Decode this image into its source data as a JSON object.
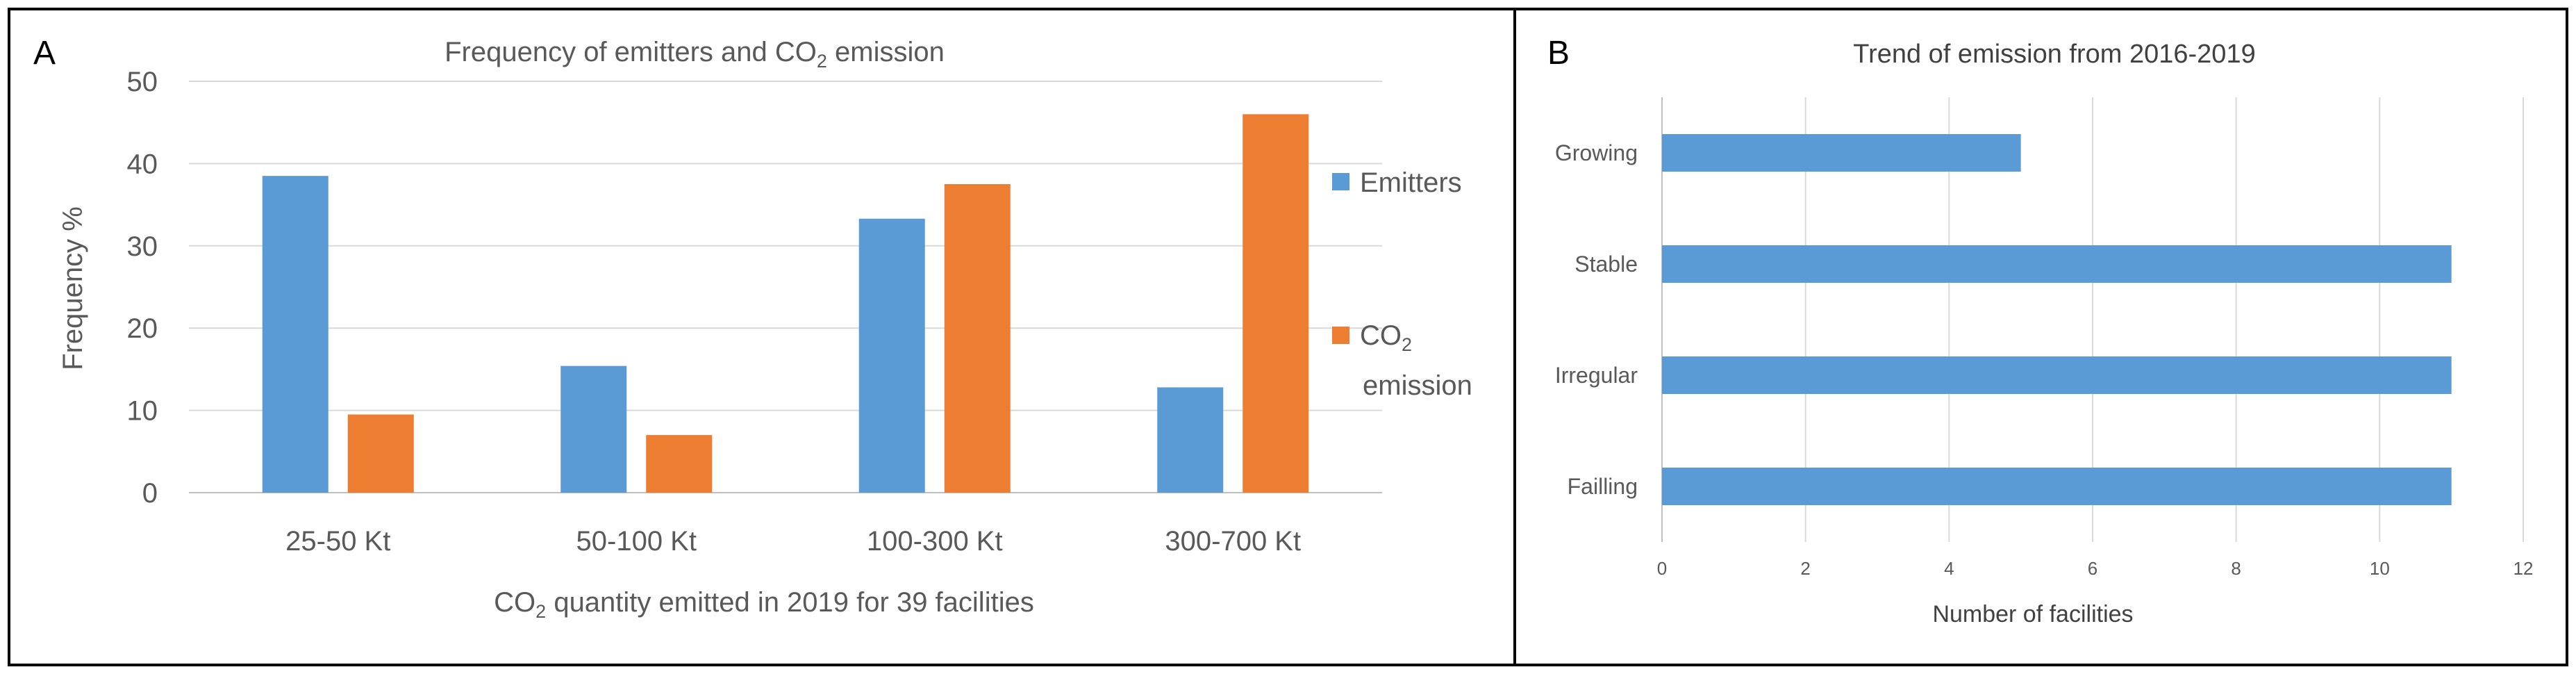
{
  "colors": {
    "emitters": "#5B9BD5",
    "co2": "#ED7D31",
    "axis_text": "#595959",
    "grid": "#D9D9D9",
    "border": "#000000"
  },
  "panel_a": {
    "letter": "A",
    "title_main": "Frequency of emitters and CO",
    "title_sub": "2",
    "title_end": " emission",
    "xlabel_main": "CO",
    "xlabel_sub": "2",
    "xlabel_end": "  quantity emitted in 2019 for 39 facilities",
    "ylabel": "Frequency %",
    "legend": {
      "emitters": "Emitters",
      "co2_main": "CO",
      "co2_sub": "2",
      "co2_line2": "emission"
    }
  },
  "panel_b": {
    "letter": "B",
    "title": "Trend of emission from 2016-2019",
    "xlabel": "Number of facilities"
  },
  "chart_data": [
    {
      "type": "bar",
      "title": "Frequency of emitters and CO2 emission",
      "categories": [
        "25-50 Kt",
        "50-100 Kt",
        "100-300 Kt",
        "300-700 Kt"
      ],
      "series": [
        {
          "name": "Emitters",
          "values": [
            38.5,
            15.4,
            33.3,
            12.8
          ]
        },
        {
          "name": "CO2 emission",
          "values": [
            9.5,
            7.0,
            37.5,
            46.0
          ]
        }
      ],
      "xlabel": "CO2 quantity emitted in 2019 for 39 facilities",
      "ylabel": "Frequency %",
      "ylim": [
        0,
        50
      ],
      "yticks": [
        "0",
        "10",
        "20",
        "30",
        "40",
        "50"
      ],
      "grid": true,
      "legend": "right"
    },
    {
      "type": "bar",
      "orientation": "horizontal",
      "title": "Trend of emission from 2016-2019",
      "categories": [
        "Growing",
        "Stable",
        "Irregular",
        "Failling"
      ],
      "values": [
        5,
        11,
        11,
        11
      ],
      "xlabel": "Number of facilities",
      "xlim": [
        0,
        12
      ],
      "xticks": [
        "0",
        "2",
        "4",
        "6",
        "8",
        "10",
        "12"
      ],
      "grid": true
    }
  ]
}
